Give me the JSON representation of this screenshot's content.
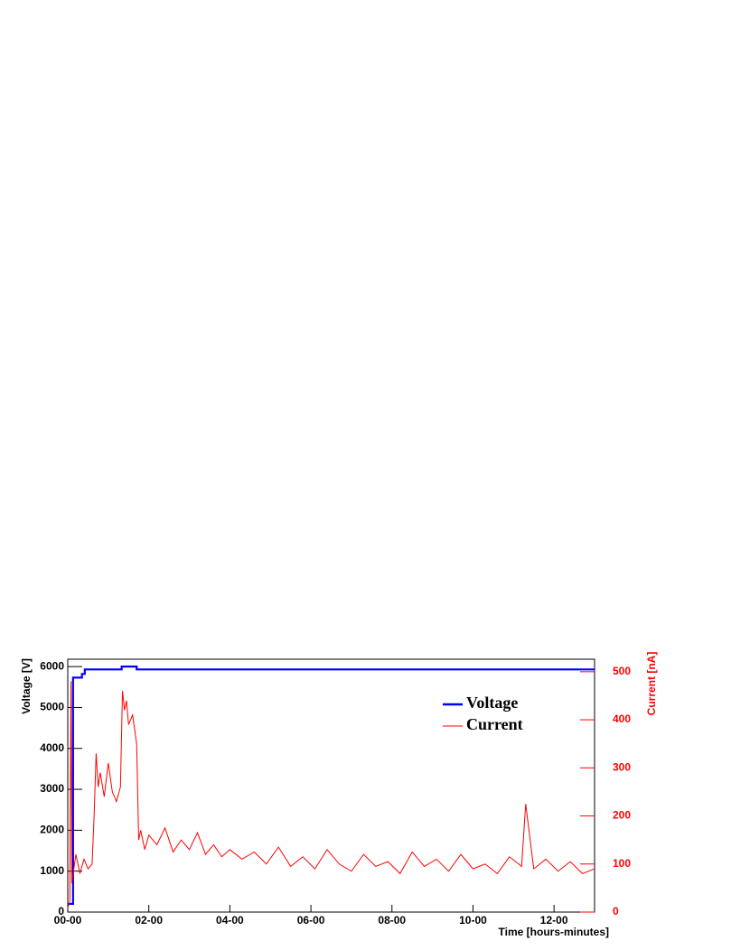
{
  "chart_data": {
    "type": "line",
    "x_label": "Time [hours-minutes]",
    "y_label": "Voltage [V]",
    "y2_label": "Current [nA]",
    "xlim": [
      0,
      13.0
    ],
    "ylim": [
      0,
      6180
    ],
    "y2lim": [
      0,
      526
    ],
    "xticks": [
      {
        "value": 0,
        "label": "00-00"
      },
      {
        "value": 2,
        "label": "02-00"
      },
      {
        "value": 4,
        "label": "04-00"
      },
      {
        "value": 6,
        "label": "06-00"
      },
      {
        "value": 8,
        "label": "08-00"
      },
      {
        "value": 10,
        "label": "10-00"
      },
      {
        "value": 12,
        "label": "12-00"
      }
    ],
    "yticks": [
      0,
      1000,
      2000,
      3000,
      4000,
      5000,
      6000
    ],
    "y2ticks": [
      0,
      100,
      200,
      300,
      400,
      500
    ],
    "legend": "upper-right",
    "series": [
      {
        "name": "Voltage",
        "color": "#0000ff",
        "step": true,
        "x": [
          0,
          0.13,
          0.13,
          0.35,
          0.35,
          0.42,
          0.42,
          1.33,
          1.33,
          1.7,
          1.7,
          13.0
        ],
        "values": [
          200,
          200,
          5730,
          5730,
          5820,
          5820,
          5930,
          5930,
          6000,
          6000,
          5930,
          5930
        ]
      },
      {
        "name": "Current",
        "color": "#ff0000",
        "axis": "y2",
        "x": [
          0,
          0.05,
          0.08,
          0.1,
          0.15,
          0.2,
          0.3,
          0.4,
          0.5,
          0.6,
          0.65,
          0.7,
          0.75,
          0.8,
          0.9,
          1.0,
          1.1,
          1.2,
          1.3,
          1.35,
          1.4,
          1.45,
          1.5,
          1.6,
          1.7,
          1.75,
          1.8,
          1.9,
          2.0,
          2.2,
          2.4,
          2.6,
          2.8,
          3.0,
          3.2,
          3.4,
          3.6,
          3.8,
          4.0,
          4.3,
          4.6,
          4.9,
          5.2,
          5.5,
          5.8,
          6.1,
          6.4,
          6.7,
          7.0,
          7.3,
          7.6,
          7.9,
          8.2,
          8.5,
          8.8,
          9.1,
          9.4,
          9.7,
          10.0,
          10.3,
          10.6,
          10.9,
          11.2,
          11.3,
          11.5,
          11.8,
          12.1,
          12.4,
          12.7,
          13.0
        ],
        "values": [
          10,
          20,
          480,
          60,
          90,
          120,
          80,
          110,
          90,
          100,
          200,
          330,
          260,
          290,
          240,
          310,
          250,
          230,
          260,
          460,
          420,
          440,
          390,
          410,
          350,
          150,
          170,
          130,
          160,
          140,
          175,
          125,
          150,
          130,
          165,
          120,
          140,
          115,
          130,
          110,
          125,
          100,
          135,
          95,
          115,
          90,
          130,
          100,
          85,
          120,
          95,
          105,
          80,
          125,
          95,
          110,
          85,
          120,
          90,
          100,
          80,
          115,
          95,
          225,
          90,
          110,
          85,
          105,
          80,
          90
        ]
      }
    ]
  }
}
